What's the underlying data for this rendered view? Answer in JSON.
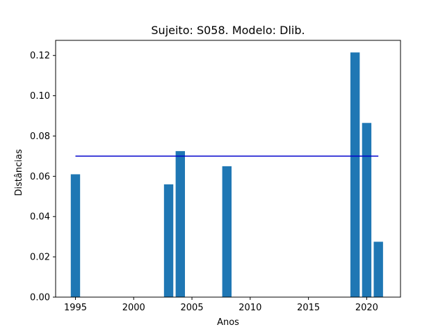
{
  "chart_data": {
    "type": "bar",
    "title": "Sujeito: S058. Modelo: Dlib.",
    "xlabel": "Anos",
    "ylabel": "Distâncias",
    "x": [
      1995,
      2003,
      2004,
      2008,
      2019,
      2020,
      2021
    ],
    "values": [
      0.061,
      0.056,
      0.0725,
      0.065,
      0.1215,
      0.0865,
      0.0275
    ],
    "bar_color": "#1f77b4",
    "reference_line": {
      "y": 0.07,
      "x_range": [
        1995,
        2021
      ],
      "color": "#0000cc"
    },
    "xlim": [
      1993.3,
      2022.9
    ],
    "ylim": [
      0,
      0.1275
    ],
    "xticks": [
      1995,
      2000,
      2005,
      2010,
      2015,
      2020
    ],
    "yticks": [
      0.0,
      0.02,
      0.04,
      0.06,
      0.08,
      0.1,
      0.12
    ],
    "ytick_labels": [
      "0.00",
      "0.02",
      "0.04",
      "0.06",
      "0.08",
      "0.10",
      "0.12"
    ],
    "grid": false,
    "legend": "none"
  }
}
